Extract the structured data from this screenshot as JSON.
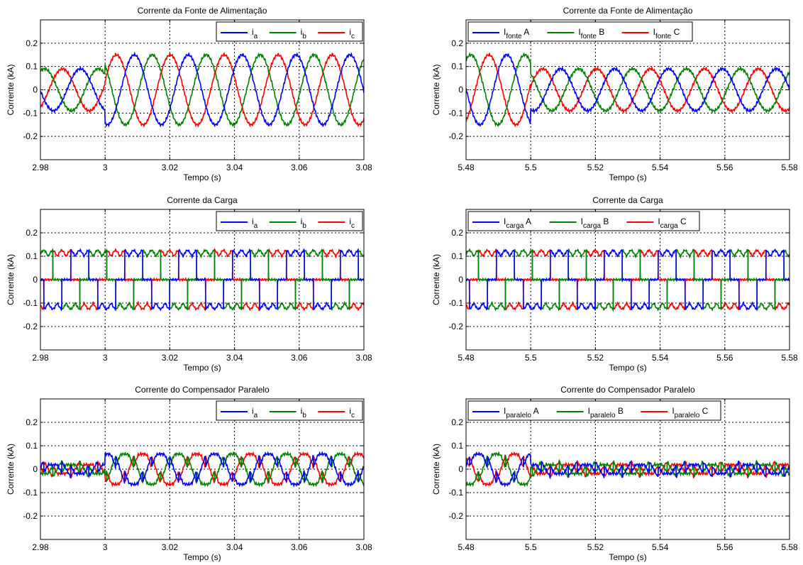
{
  "colors": {
    "a": "#0000ff",
    "b": "#008000",
    "c": "#ff0000",
    "grid": "#000000",
    "axes": "#000000"
  },
  "chart_data": [
    {
      "type": "line",
      "title": "Corrente da Fonte de Alimentação",
      "xlabel": "Tempo (s)",
      "ylabel": "Corrente (kA)",
      "xlim": [
        2.98,
        3.08
      ],
      "ylim": [
        -0.3,
        0.3
      ],
      "xticks": [
        "2.98",
        "3",
        "3.02",
        "3.04",
        "3.06",
        "3.08"
      ],
      "yticks": [
        "-0.2",
        "-0.1",
        "0",
        "0.1",
        "0.2"
      ],
      "grid": true,
      "legend_position": "top-right",
      "legend": [
        {
          "main": "i",
          "sub": "a",
          "suffix": ""
        },
        {
          "main": "i",
          "sub": "b",
          "suffix": ""
        },
        {
          "main": "i",
          "sub": "c",
          "suffix": ""
        }
      ],
      "waveform": {
        "kind": "sinusoidal",
        "freq_hz": 60,
        "phase_a_deg": -105,
        "step_time": 3.0,
        "amplitude_before": 0.09,
        "amplitude_after": 0.15,
        "ripple": 0.004
      }
    },
    {
      "type": "line",
      "title": "Corrente da Fonte de Alimentação",
      "xlabel": "Tempo (s)",
      "ylabel": "Corrente (kA)",
      "xlim": [
        5.48,
        5.58
      ],
      "ylim": [
        -0.3,
        0.3
      ],
      "xticks": [
        "5.48",
        "5.5",
        "5.52",
        "5.54",
        "5.56",
        "5.58"
      ],
      "yticks": [
        "-0.2",
        "-0.1",
        "0",
        "0.1",
        "0.2"
      ],
      "grid": true,
      "legend_position": "top-left",
      "legend": [
        {
          "main": "I",
          "sub": "fonte",
          "suffix": " A"
        },
        {
          "main": "I",
          "sub": "fonte",
          "suffix": " B"
        },
        {
          "main": "I",
          "sub": "fonte",
          "suffix": " C"
        }
      ],
      "waveform": {
        "kind": "sinusoidal",
        "freq_hz": 60,
        "phase_a_deg": -110,
        "step_time": 5.5,
        "amplitude_before": 0.15,
        "amplitude_after": 0.09,
        "ripple": 0.004
      }
    },
    {
      "type": "line",
      "title": "Corrente da Carga",
      "xlabel": "Tempo (s)",
      "ylabel": "Corrente (kA)",
      "xlim": [
        2.98,
        3.08
      ],
      "ylim": [
        -0.3,
        0.3
      ],
      "xticks": [
        "2.98",
        "3",
        "3.02",
        "3.04",
        "3.06",
        "3.08"
      ],
      "yticks": [
        "-0.2",
        "-0.1",
        "0",
        "0.1",
        "0.2"
      ],
      "grid": true,
      "legend_position": "top-right",
      "legend": [
        {
          "main": "i",
          "sub": "a",
          "suffix": ""
        },
        {
          "main": "i",
          "sub": "b",
          "suffix": ""
        },
        {
          "main": "i",
          "sub": "c",
          "suffix": ""
        }
      ],
      "waveform": {
        "kind": "rectifier",
        "freq_hz": 60,
        "phase_a_deg": -100,
        "step_time": null,
        "amplitude_before": 0.1,
        "amplitude_after": 0.1,
        "ripple": 0.003
      }
    },
    {
      "type": "line",
      "title": "Corrente da Carga",
      "xlabel": "Tempo (s)",
      "ylabel": "Corrente (kA)",
      "xlim": [
        5.48,
        5.58
      ],
      "ylim": [
        -0.3,
        0.3
      ],
      "xticks": [
        "5.48",
        "5.5",
        "5.52",
        "5.54",
        "5.56",
        "5.58"
      ],
      "yticks": [
        "-0.2",
        "-0.1",
        "0",
        "0.1",
        "0.2"
      ],
      "grid": true,
      "legend_position": "top-left",
      "legend": [
        {
          "main": "I",
          "sub": "carga",
          "suffix": " A"
        },
        {
          "main": "I",
          "sub": "carga",
          "suffix": " B"
        },
        {
          "main": "I",
          "sub": "carga",
          "suffix": " C"
        }
      ],
      "waveform": {
        "kind": "rectifier",
        "freq_hz": 60,
        "phase_a_deg": -100,
        "step_time": null,
        "amplitude_before": 0.1,
        "amplitude_after": 0.1,
        "ripple": 0.003
      }
    },
    {
      "type": "line",
      "title": "Corrente do Compensador Paralelo",
      "xlabel": "Tempo (s)",
      "ylabel": "Corrente (kA)",
      "xlim": [
        2.98,
        3.08
      ],
      "ylim": [
        -0.3,
        0.3
      ],
      "xticks": [
        "2.98",
        "3",
        "3.02",
        "3.04",
        "3.06",
        "3.08"
      ],
      "yticks": [
        "-0.2",
        "-0.1",
        "0",
        "0.1",
        "0.2"
      ],
      "grid": true,
      "legend_position": "top-right",
      "legend": [
        {
          "main": "i",
          "sub": "a",
          "suffix": ""
        },
        {
          "main": "i",
          "sub": "b",
          "suffix": ""
        },
        {
          "main": "i",
          "sub": "c",
          "suffix": ""
        }
      ],
      "waveform": {
        "kind": "compensator",
        "freq_hz": 60,
        "phase_a_deg": -100,
        "step_time": 3.0,
        "amplitude_before": 0.03,
        "amplitude_after": 0.085,
        "ripple": 0.004
      }
    },
    {
      "type": "line",
      "title": "Corrente do Compensador Paralelo",
      "xlabel": "Tempo (s)",
      "ylabel": "Corrente (kA)",
      "xlim": [
        5.48,
        5.58
      ],
      "ylim": [
        -0.3,
        0.3
      ],
      "xticks": [
        "5.48",
        "5.5",
        "5.52",
        "5.54",
        "5.56",
        "5.58"
      ],
      "yticks": [
        "-0.2",
        "-0.1",
        "0",
        "0.1",
        "0.2"
      ],
      "grid": true,
      "legend_position": "top-left",
      "legend": [
        {
          "main": "I",
          "sub": "paralelo",
          "suffix": " A"
        },
        {
          "main": "I",
          "sub": "paralelo",
          "suffix": " B"
        },
        {
          "main": "I",
          "sub": "paralelo",
          "suffix": " C"
        }
      ],
      "waveform": {
        "kind": "compensator",
        "freq_hz": 60,
        "phase_a_deg": -100,
        "step_time": 5.5,
        "amplitude_before": 0.085,
        "amplitude_after": 0.03,
        "ripple": 0.004
      }
    }
  ]
}
